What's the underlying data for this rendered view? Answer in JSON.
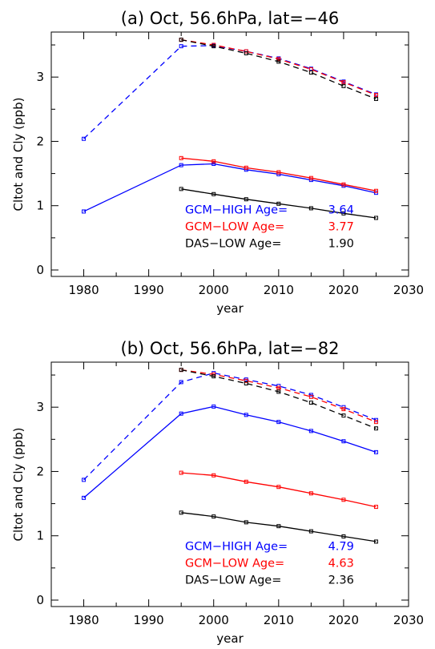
{
  "chart_data": [
    {
      "type": "line",
      "title": "(a) Oct,  56.6hPa, lat=−46",
      "xlabel": "year",
      "ylabel": "Cltot and Cly (ppb)",
      "xlim": [
        1975,
        2030
      ],
      "ylim": [
        -0.1,
        3.7
      ],
      "xticks": [
        1980,
        1990,
        2000,
        2010,
        2020,
        2030
      ],
      "yticks": [
        0,
        1,
        2,
        3
      ],
      "series": [
        {
          "color": "#0000ff",
          "dash": true,
          "x": [
            1980,
            1995,
            2000,
            2005,
            2010,
            2015,
            2020,
            2025
          ],
          "y": [
            2.04,
            3.48,
            3.49,
            3.4,
            3.29,
            3.13,
            2.93,
            2.73
          ]
        },
        {
          "color": "#ff0000",
          "dash": true,
          "x": [
            1995,
            2000,
            2005,
            2010,
            2015,
            2020,
            2025
          ],
          "y": [
            3.58,
            3.5,
            3.4,
            3.28,
            3.12,
            2.92,
            2.72
          ]
        },
        {
          "color": "#000000",
          "dash": true,
          "x": [
            1995,
            2000,
            2005,
            2010,
            2015,
            2020,
            2025
          ],
          "y": [
            3.58,
            3.48,
            3.37,
            3.24,
            3.07,
            2.86,
            2.66
          ]
        },
        {
          "color": "#0000ff",
          "dash": false,
          "x": [
            1980,
            1995,
            2000,
            2005,
            2010,
            2015,
            2020,
            2025
          ],
          "y": [
            0.91,
            1.63,
            1.65,
            1.56,
            1.49,
            1.4,
            1.31,
            1.2
          ]
        },
        {
          "color": "#ff0000",
          "dash": false,
          "x": [
            1995,
            2000,
            2005,
            2010,
            2015,
            2020,
            2025
          ],
          "y": [
            1.74,
            1.69,
            1.59,
            1.52,
            1.43,
            1.33,
            1.23
          ]
        },
        {
          "color": "#000000",
          "dash": false,
          "x": [
            1995,
            2000,
            2005,
            2010,
            2015,
            2020,
            2025
          ],
          "y": [
            1.26,
            1.18,
            1.1,
            1.03,
            0.96,
            0.88,
            0.81
          ]
        }
      ],
      "annotations": [
        {
          "label": "GCM−HIGH Age=",
          "value": "3.64",
          "color": "#0000ff"
        },
        {
          "label": "GCM−LOW Age=",
          "value": "3.77",
          "color": "#ff0000"
        },
        {
          "label": "DAS−LOW Age=",
          "value": "1.90",
          "color": "#000000"
        }
      ]
    },
    {
      "type": "line",
      "title": "(b) Oct,  56.6hPa, lat=−82",
      "xlabel": "year",
      "ylabel": "Cltot and Cly (ppb)",
      "xlim": [
        1975,
        2030
      ],
      "ylim": [
        -0.1,
        3.7
      ],
      "xticks": [
        1980,
        1990,
        2000,
        2010,
        2020,
        2030
      ],
      "yticks": [
        0,
        1,
        2,
        3
      ],
      "series": [
        {
          "color": "#0000ff",
          "dash": true,
          "x": [
            1980,
            1995,
            2000,
            2005,
            2010,
            2015,
            2020,
            2025
          ],
          "y": [
            1.87,
            3.39,
            3.53,
            3.43,
            3.33,
            3.19,
            3.0,
            2.8
          ]
        },
        {
          "color": "#ff0000",
          "dash": true,
          "x": [
            1995,
            2000,
            2005,
            2010,
            2015,
            2020,
            2025
          ],
          "y": [
            3.58,
            3.51,
            3.41,
            3.3,
            3.16,
            2.97,
            2.77
          ]
        },
        {
          "color": "#000000",
          "dash": true,
          "x": [
            1995,
            2000,
            2005,
            2010,
            2015,
            2020,
            2025
          ],
          "y": [
            3.58,
            3.48,
            3.37,
            3.24,
            3.07,
            2.87,
            2.67
          ]
        },
        {
          "color": "#0000ff",
          "dash": false,
          "x": [
            1980,
            1995,
            2000,
            2005,
            2010,
            2015,
            2020,
            2025
          ],
          "y": [
            1.59,
            2.9,
            3.01,
            2.88,
            2.77,
            2.63,
            2.47,
            2.3
          ]
        },
        {
          "color": "#ff0000",
          "dash": false,
          "x": [
            1995,
            2000,
            2005,
            2010,
            2015,
            2020,
            2025
          ],
          "y": [
            1.98,
            1.94,
            1.84,
            1.76,
            1.66,
            1.56,
            1.45
          ]
        },
        {
          "color": "#000000",
          "dash": false,
          "x": [
            1995,
            2000,
            2005,
            2010,
            2015,
            2020,
            2025
          ],
          "y": [
            1.36,
            1.3,
            1.21,
            1.15,
            1.07,
            0.99,
            0.91
          ]
        }
      ],
      "annotations": [
        {
          "label": "GCM−HIGH Age=",
          "value": "4.79",
          "color": "#0000ff"
        },
        {
          "label": "GCM−LOW Age=",
          "value": "4.63",
          "color": "#ff0000"
        },
        {
          "label": "DAS−LOW Age=",
          "value": "2.36",
          "color": "#000000"
        }
      ]
    }
  ]
}
